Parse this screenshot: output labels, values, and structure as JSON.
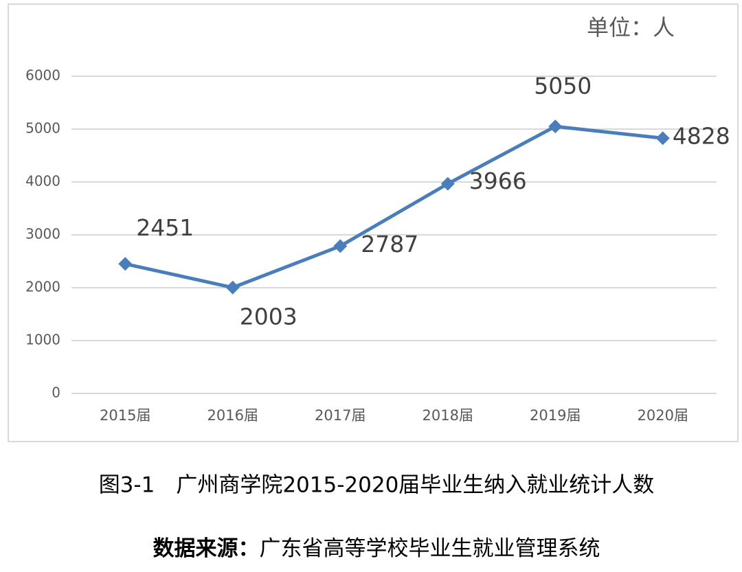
{
  "chart_data": {
    "type": "line",
    "unit_label": "单位：人",
    "caption": "图3-1　广州商学院2015-2020届毕业生纳入就业统计人数",
    "categories": [
      "2015届",
      "2016届",
      "2017届",
      "2018届",
      "2019届",
      "2020届"
    ],
    "values": [
      2451,
      2003,
      2787,
      3966,
      5050,
      4828
    ],
    "color": "#4a7ebb",
    "ylim": [
      0,
      6000
    ],
    "yticks": [
      0,
      1000,
      2000,
      3000,
      4000,
      5000,
      6000
    ],
    "grid": true
  },
  "source": {
    "label": "数据来源：",
    "text": "广东省高等学校毕业生就业管理系统"
  }
}
